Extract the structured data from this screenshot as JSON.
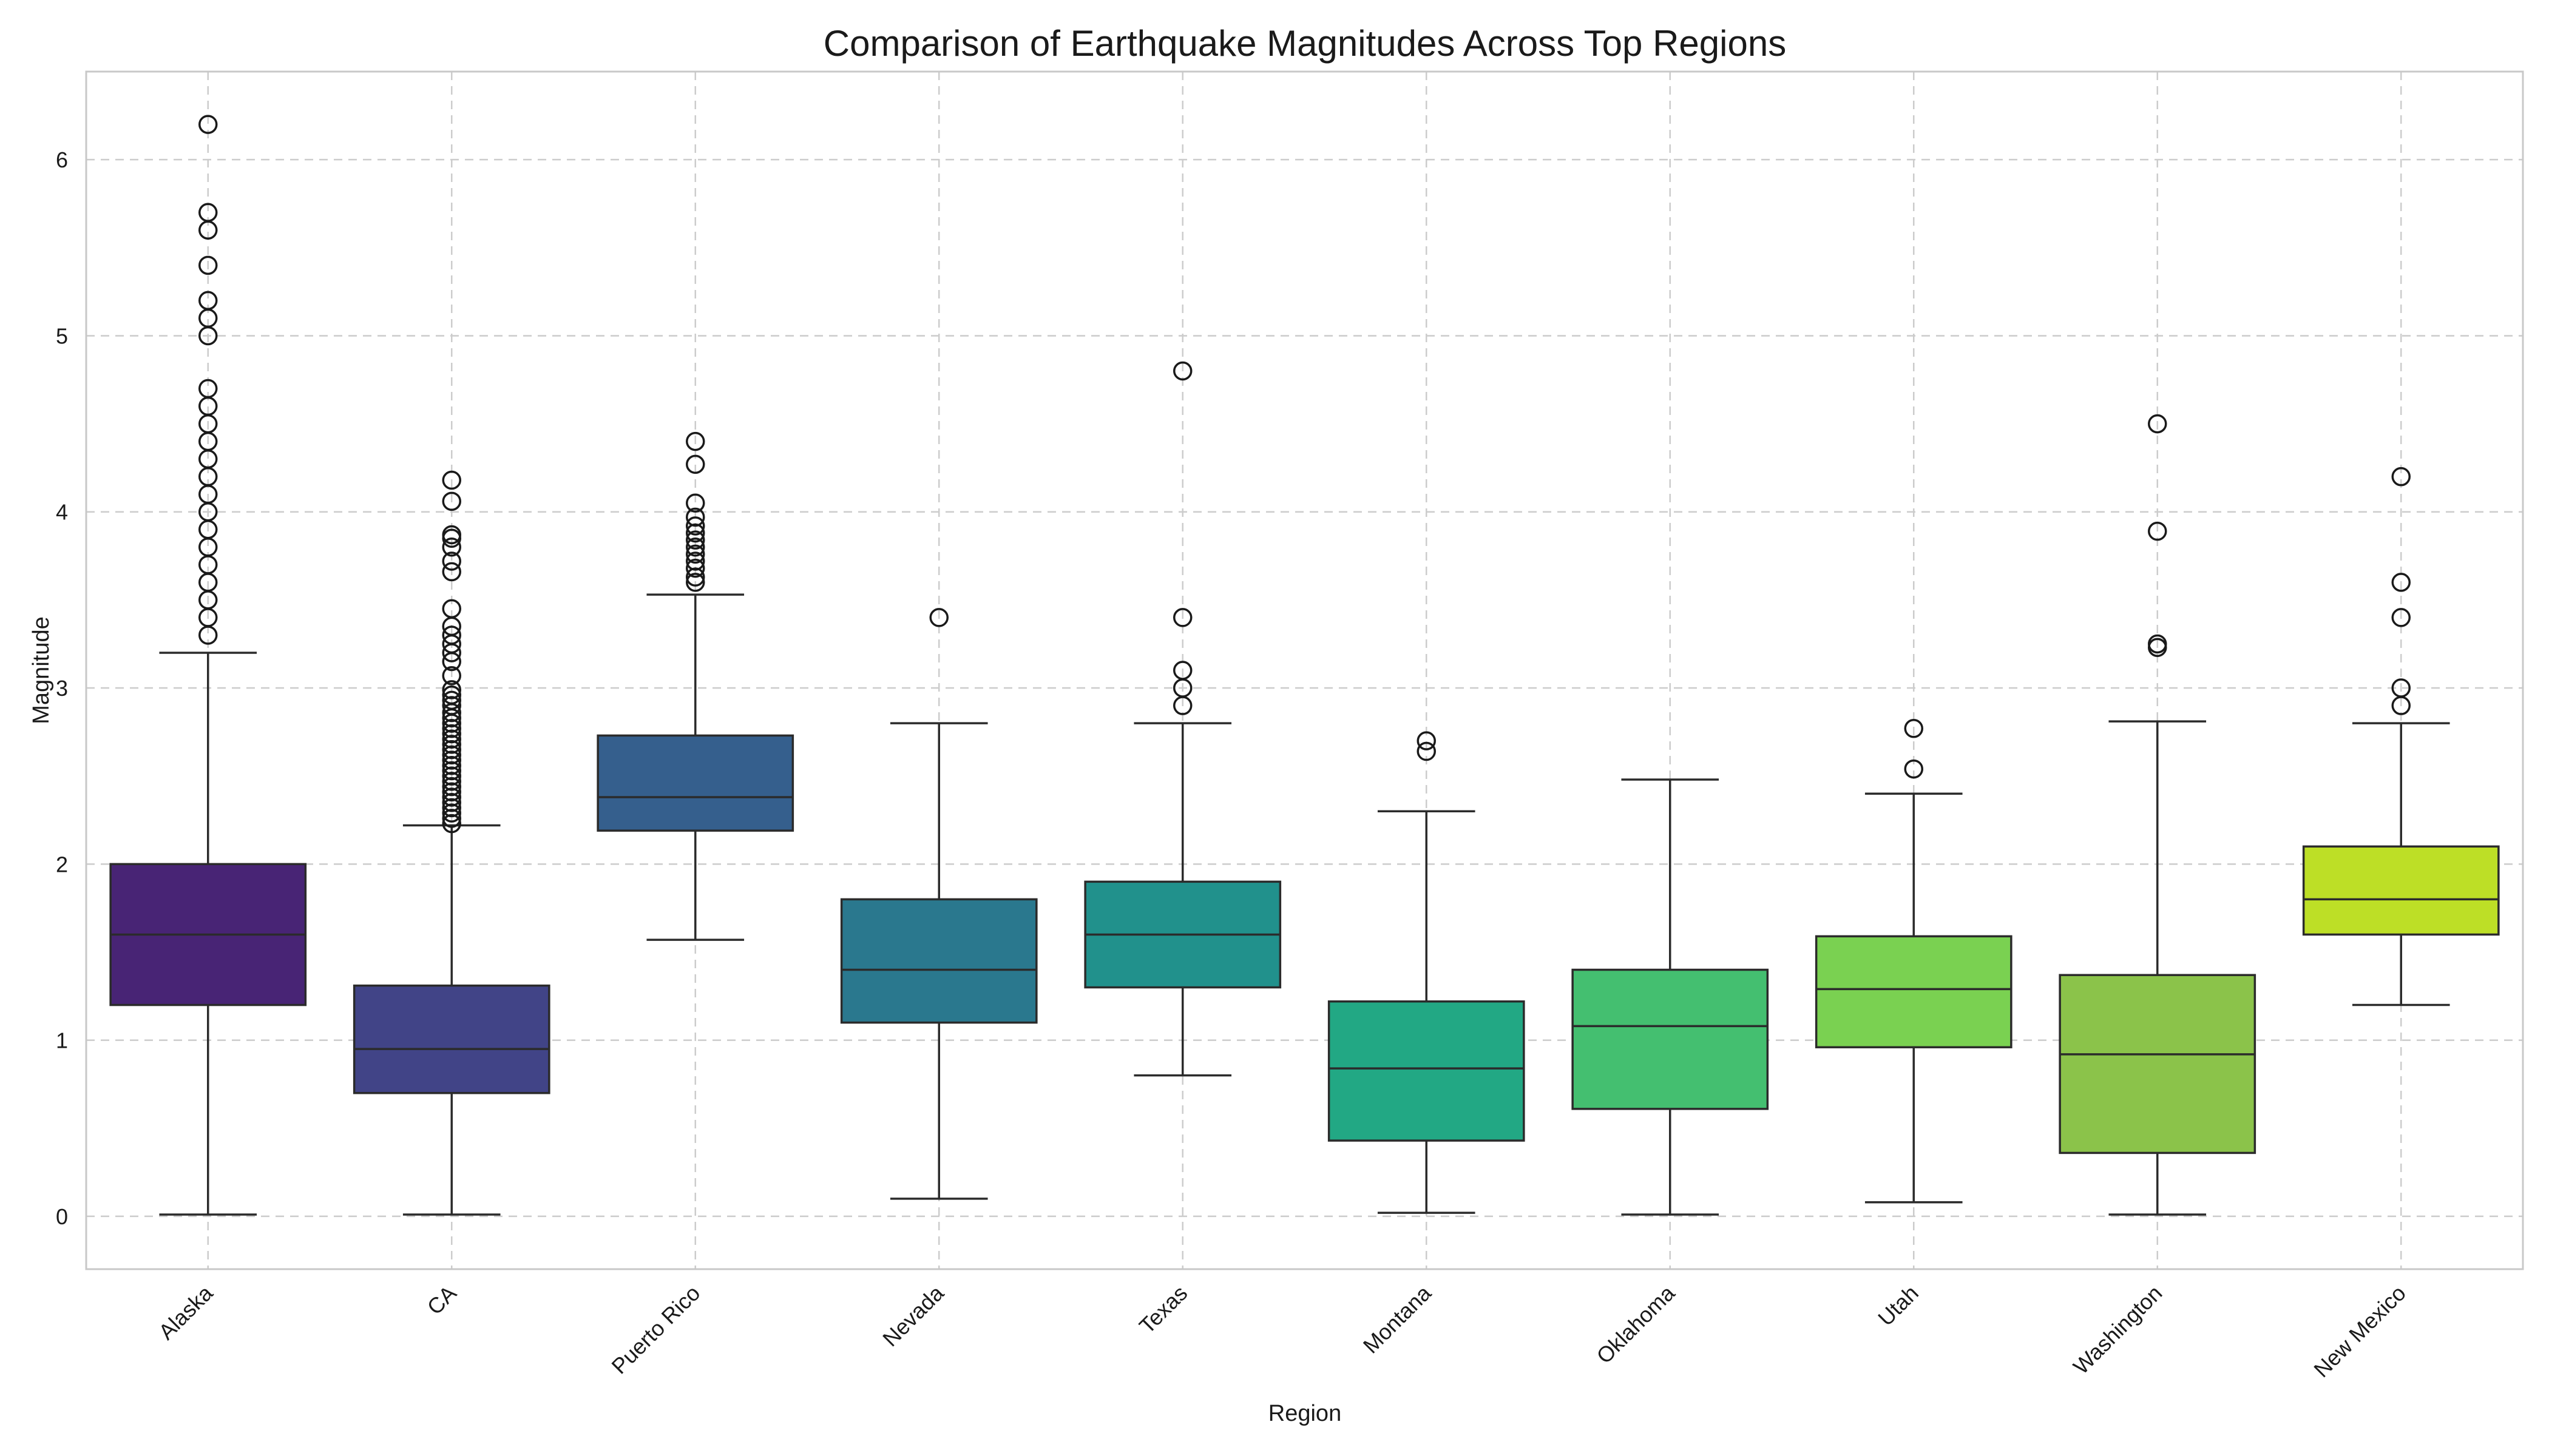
{
  "chart_data": {
    "type": "box",
    "title": "Comparison of Earthquake Magnitudes Across Top Regions",
    "xlabel": "Region",
    "ylabel": "Magnitude",
    "ylim": [
      -0.3,
      6.5
    ],
    "yticks": [
      0,
      1,
      2,
      3,
      4,
      5,
      6
    ],
    "grid": true,
    "categories": [
      "Alaska",
      "CA",
      "Puerto Rico",
      "Nevada",
      "Texas",
      "Montana",
      "Oklahoma",
      "Utah",
      "Washington",
      "New Mexico"
    ],
    "colors": [
      "#482475",
      "#414487",
      "#355f8d",
      "#2a788e",
      "#21918c",
      "#22a884",
      "#44bf70",
      "#7ad151",
      "#8bc34a",
      "#bddf26"
    ],
    "boxes": [
      {
        "name": "Alaska",
        "whislo": 0.01,
        "q1": 1.2,
        "med": 1.6,
        "q3": 2.0,
        "whishi": 3.2,
        "fliers": [
          3.3,
          3.4,
          3.5,
          3.6,
          3.7,
          3.8,
          3.9,
          4.0,
          4.1,
          4.2,
          4.3,
          4.4,
          4.5,
          4.6,
          4.7,
          5.0,
          5.1,
          5.2,
          5.4,
          5.6,
          5.7,
          6.2
        ]
      },
      {
        "name": "CA",
        "whislo": 0.01,
        "q1": 0.7,
        "med": 0.95,
        "q3": 1.31,
        "whishi": 2.22,
        "fliers": [
          2.23,
          2.26,
          2.29,
          2.32,
          2.35,
          2.38,
          2.41,
          2.44,
          2.47,
          2.5,
          2.53,
          2.56,
          2.59,
          2.62,
          2.65,
          2.68,
          2.71,
          2.74,
          2.77,
          2.8,
          2.83,
          2.86,
          2.9,
          2.93,
          2.96,
          2.99,
          3.07,
          3.15,
          3.2,
          3.25,
          3.3,
          3.35,
          3.45,
          3.66,
          3.72,
          3.8,
          3.85,
          3.87,
          4.06,
          4.18
        ]
      },
      {
        "name": "Puerto Rico",
        "whislo": 1.57,
        "q1": 2.19,
        "med": 2.38,
        "q3": 2.73,
        "whishi": 3.53,
        "fliers": [
          3.6,
          3.63,
          3.68,
          3.72,
          3.76,
          3.8,
          3.84,
          3.88,
          3.92,
          3.97,
          4.05,
          4.27,
          4.4
        ]
      },
      {
        "name": "Nevada",
        "whislo": 0.1,
        "q1": 1.1,
        "med": 1.4,
        "q3": 1.8,
        "whishi": 2.8,
        "fliers": [
          3.4
        ]
      },
      {
        "name": "Texas",
        "whislo": 0.8,
        "q1": 1.3,
        "med": 1.6,
        "q3": 1.9,
        "whishi": 2.8,
        "fliers": [
          2.9,
          3.0,
          3.1,
          3.4,
          4.8
        ]
      },
      {
        "name": "Montana",
        "whislo": 0.02,
        "q1": 0.43,
        "med": 0.84,
        "q3": 1.22,
        "whishi": 2.3,
        "fliers": [
          2.64,
          2.7
        ]
      },
      {
        "name": "Oklahoma",
        "whislo": 0.01,
        "q1": 0.61,
        "med": 1.08,
        "q3": 1.4,
        "whishi": 2.48,
        "fliers": []
      },
      {
        "name": "Utah",
        "whislo": 0.08,
        "q1": 0.96,
        "med": 1.29,
        "q3": 1.59,
        "whishi": 2.4,
        "fliers": [
          2.54,
          2.77
        ]
      },
      {
        "name": "Washington",
        "whislo": 0.01,
        "q1": 0.36,
        "med": 0.92,
        "q3": 1.37,
        "whishi": 2.81,
        "fliers": [
          3.23,
          3.25,
          3.89,
          4.5
        ]
      },
      {
        "name": "New Mexico",
        "whislo": 1.2,
        "q1": 1.6,
        "med": 1.8,
        "q3": 2.1,
        "whishi": 2.8,
        "fliers": [
          2.9,
          3.0,
          3.4,
          3.6,
          4.2
        ]
      }
    ]
  }
}
